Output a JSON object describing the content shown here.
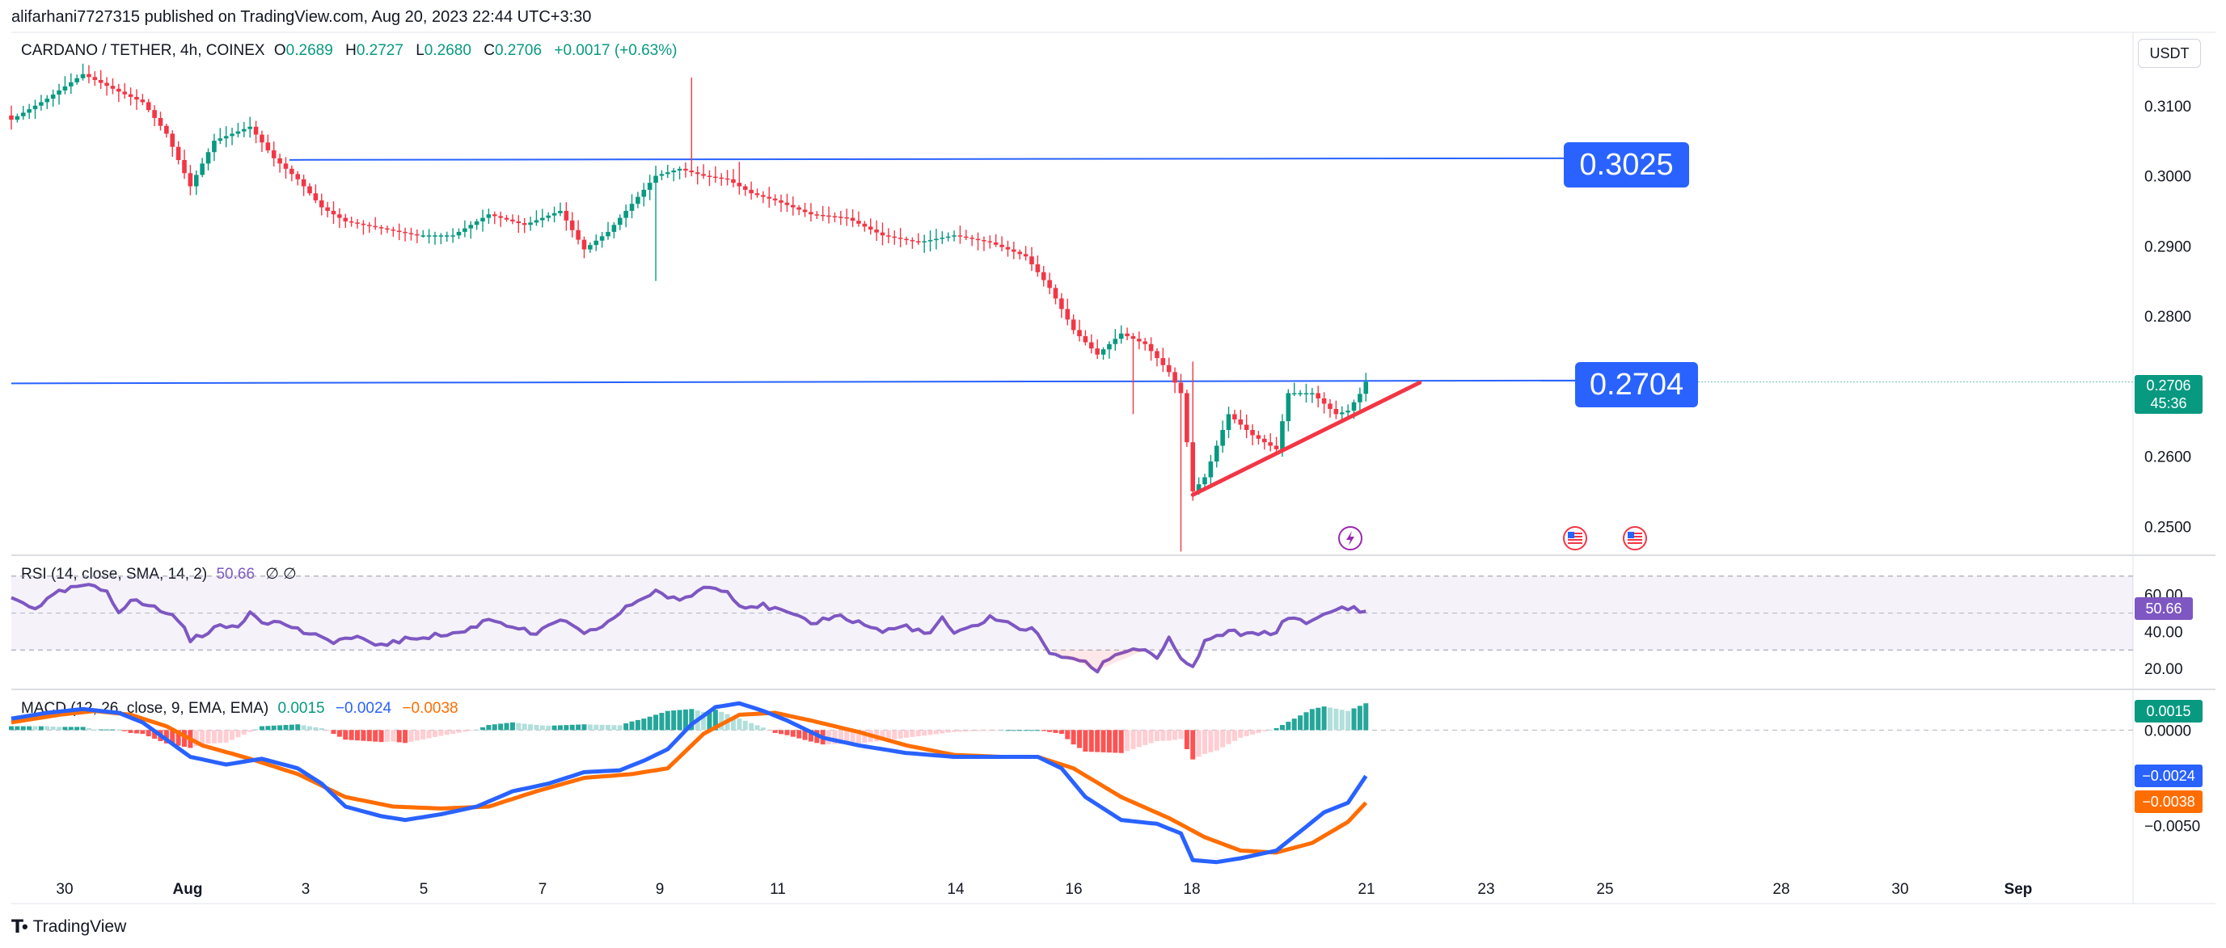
{
  "attribution": "alifarhani7727315 published on TradingView.com, Aug 20, 2023 22:44 UTC+3:30",
  "footer_brand": "TradingView",
  "currency": "USDT",
  "colors": {
    "up": "#089981",
    "down": "#f23645",
    "level": "#2962ff",
    "rsi": "#7e57c2",
    "macd": "#2962ff",
    "signal": "#ff6d00",
    "trendline": "#f23645"
  },
  "icons": [
    "lightning-event-icon",
    "us-flag-event-icon",
    "us-flag-event-icon"
  ],
  "chart_data": [
    {
      "type": "candlestick",
      "title": "CARDANO / TETHER, 4h, COINEX",
      "ohlc": {
        "o_label": "O",
        "o": "0.2689",
        "h_label": "H",
        "h": "0.2727",
        "l_label": "L",
        "l": "0.2680",
        "c_label": "C",
        "c": "0.2706",
        "change": "+0.0017 (+0.63%)"
      },
      "x_ticks": [
        "30",
        "Aug",
        "3",
        "5",
        "7",
        "9",
        "11",
        "14",
        "16",
        "18",
        "21",
        "23",
        "25",
        "28",
        "30",
        "Sep"
      ],
      "y_ticks": [
        "0.3100",
        "0.3000",
        "0.2900",
        "0.2800",
        "0.2600",
        "0.2500"
      ],
      "ylim": [
        0.246,
        0.32
      ],
      "key_levels": [
        "0.3025",
        "0.2704"
      ],
      "last_price": "0.2706",
      "countdown": "45:36",
      "support_trendline": {
        "start_bar": 198,
        "start_price": 0.2545,
        "end_bar": 236,
        "end_price": 0.2705
      },
      "anchors": [
        [
          0,
          0.308
        ],
        [
          6,
          0.311
        ],
        [
          12,
          0.3145
        ],
        [
          18,
          0.312
        ],
        [
          22,
          0.3105
        ],
        [
          26,
          0.306
        ],
        [
          30,
          0.2985
        ],
        [
          34,
          0.305
        ],
        [
          40,
          0.307
        ],
        [
          44,
          0.3025
        ],
        [
          48,
          0.2995
        ],
        [
          52,
          0.2955
        ],
        [
          56,
          0.2935
        ],
        [
          62,
          0.2925
        ],
        [
          68,
          0.2915
        ],
        [
          74,
          0.2915
        ],
        [
          80,
          0.2945
        ],
        [
          86,
          0.293
        ],
        [
          92,
          0.295
        ],
        [
          96,
          0.2895
        ],
        [
          100,
          0.292
        ],
        [
          104,
          0.296
        ],
        [
          108,
          0.3
        ],
        [
          112,
          0.301
        ],
        [
          116,
          0.3
        ],
        [
          120,
          0.2995
        ],
        [
          124,
          0.2975
        ],
        [
          128,
          0.2965
        ],
        [
          134,
          0.2945
        ],
        [
          140,
          0.294
        ],
        [
          146,
          0.2915
        ],
        [
          152,
          0.2905
        ],
        [
          158,
          0.2915
        ],
        [
          164,
          0.2905
        ],
        [
          170,
          0.2885
        ],
        [
          174,
          0.284
        ],
        [
          178,
          0.278
        ],
        [
          182,
          0.2745
        ],
        [
          186,
          0.2775
        ],
        [
          190,
          0.276
        ],
        [
          194,
          0.272
        ],
        [
          196,
          0.269
        ],
        [
          198,
          0.255
        ],
        [
          200,
          0.257
        ],
        [
          204,
          0.266
        ],
        [
          208,
          0.263
        ],
        [
          212,
          0.261
        ],
        [
          214,
          0.269
        ],
        [
          218,
          0.269
        ],
        [
          222,
          0.266
        ],
        [
          224,
          0.2665
        ],
        [
          226,
          0.2689
        ],
        [
          227,
          0.2706
        ]
      ]
    },
    {
      "type": "line",
      "title": "RSI (14, close, SMA, 14, 2)",
      "value": "50.66",
      "extra": "∅ ∅",
      "y_ticks": [
        "60.00",
        "40.00",
        "20.00"
      ],
      "ylim": [
        10,
        80
      ],
      "band": [
        30,
        70
      ],
      "anchors": [
        [
          0,
          58
        ],
        [
          4,
          53
        ],
        [
          8,
          61
        ],
        [
          12,
          65
        ],
        [
          16,
          62
        ],
        [
          18,
          51
        ],
        [
          20,
          57
        ],
        [
          24,
          53
        ],
        [
          28,
          47
        ],
        [
          30,
          35
        ],
        [
          34,
          42
        ],
        [
          38,
          43
        ],
        [
          40,
          51
        ],
        [
          42,
          46
        ],
        [
          46,
          44
        ],
        [
          48,
          41
        ],
        [
          52,
          36
        ],
        [
          54,
          35
        ],
        [
          58,
          37
        ],
        [
          60,
          33
        ],
        [
          64,
          34
        ],
        [
          68,
          37
        ],
        [
          72,
          38
        ],
        [
          76,
          40
        ],
        [
          80,
          47
        ],
        [
          84,
          43
        ],
        [
          88,
          38
        ],
        [
          92,
          47
        ],
        [
          96,
          38
        ],
        [
          100,
          45
        ],
        [
          104,
          55
        ],
        [
          108,
          62
        ],
        [
          112,
          56
        ],
        [
          116,
          64
        ],
        [
          120,
          63
        ],
        [
          122,
          54
        ],
        [
          126,
          54
        ],
        [
          130,
          50
        ],
        [
          134,
          44
        ],
        [
          138,
          49
        ],
        [
          142,
          45
        ],
        [
          146,
          40
        ],
        [
          150,
          43
        ],
        [
          154,
          38
        ],
        [
          156,
          48
        ],
        [
          158,
          38
        ],
        [
          162,
          44
        ],
        [
          164,
          48
        ],
        [
          168,
          43
        ],
        [
          172,
          40
        ],
        [
          174,
          27
        ],
        [
          178,
          26
        ],
        [
          182,
          19
        ],
        [
          184,
          26
        ],
        [
          188,
          31
        ],
        [
          190,
          30
        ],
        [
          192,
          26
        ],
        [
          194,
          36
        ],
        [
          196,
          24
        ],
        [
          198,
          21
        ],
        [
          200,
          34
        ],
        [
          204,
          40
        ],
        [
          208,
          38
        ],
        [
          212,
          40
        ],
        [
          214,
          48
        ],
        [
          218,
          45
        ],
        [
          222,
          52
        ],
        [
          225,
          53
        ],
        [
          227,
          50.66
        ]
      ]
    },
    {
      "type": "line",
      "title": "MACD (12, 26, close, 9, EMA, EMA)",
      "values": {
        "histogram": "0.0015",
        "macd": "−0.0024",
        "signal": "−0.0038"
      },
      "y_ticks": [
        "0.0000",
        "−0.0050"
      ],
      "ylim": [
        -0.0078,
        0.002
      ],
      "series": [
        {
          "name": "MACD",
          "anchors": [
            [
              0,
              0.0006
            ],
            [
              6,
              0.0009
            ],
            [
              12,
              0.0011
            ],
            [
              18,
              0.0009
            ],
            [
              22,
              0.0004
            ],
            [
              26,
              -0.0005
            ],
            [
              30,
              -0.0014
            ],
            [
              36,
              -0.0018
            ],
            [
              42,
              -0.0015
            ],
            [
              48,
              -0.002
            ],
            [
              52,
              -0.0028
            ],
            [
              56,
              -0.004
            ],
            [
              62,
              -0.0045
            ],
            [
              66,
              -0.0047
            ],
            [
              72,
              -0.0044
            ],
            [
              78,
              -0.004
            ],
            [
              84,
              -0.0032
            ],
            [
              90,
              -0.0028
            ],
            [
              96,
              -0.0022
            ],
            [
              102,
              -0.0021
            ],
            [
              106,
              -0.0016
            ],
            [
              110,
              -0.001
            ],
            [
              114,
              0.0003
            ],
            [
              118,
              0.0012
            ],
            [
              122,
              0.0014
            ],
            [
              126,
              0.001
            ],
            [
              130,
              0.0005
            ],
            [
              136,
              -0.0004
            ],
            [
              142,
              -0.0008
            ],
            [
              150,
              -0.0012
            ],
            [
              158,
              -0.0014
            ],
            [
              166,
              -0.0014
            ],
            [
              172,
              -0.0014
            ],
            [
              176,
              -0.002
            ],
            [
              180,
              -0.0035
            ],
            [
              186,
              -0.0047
            ],
            [
              192,
              -0.0049
            ],
            [
              196,
              -0.0054
            ],
            [
              198,
              -0.0068
            ],
            [
              202,
              -0.0069
            ],
            [
              206,
              -0.0067
            ],
            [
              212,
              -0.0063
            ],
            [
              216,
              -0.0053
            ],
            [
              220,
              -0.0043
            ],
            [
              224,
              -0.0038
            ],
            [
              227,
              -0.0024
            ]
          ]
        },
        {
          "name": "Signal",
          "anchors": [
            [
              0,
              0.0004
            ],
            [
              8,
              0.0008
            ],
            [
              14,
              0.001
            ],
            [
              20,
              0.0008
            ],
            [
              26,
              0.0002
            ],
            [
              32,
              -0.0008
            ],
            [
              40,
              -0.0015
            ],
            [
              48,
              -0.0023
            ],
            [
              56,
              -0.0035
            ],
            [
              64,
              -0.004
            ],
            [
              72,
              -0.0041
            ],
            [
              80,
              -0.004
            ],
            [
              88,
              -0.0032
            ],
            [
              96,
              -0.0025
            ],
            [
              104,
              -0.0023
            ],
            [
              110,
              -0.002
            ],
            [
              116,
              -0.0002
            ],
            [
              122,
              0.0008
            ],
            [
              128,
              0.0009
            ],
            [
              134,
              0.0005
            ],
            [
              142,
              -0.0001
            ],
            [
              150,
              -0.0008
            ],
            [
              158,
              -0.0013
            ],
            [
              166,
              -0.0014
            ],
            [
              172,
              -0.0014
            ],
            [
              178,
              -0.002
            ],
            [
              186,
              -0.0035
            ],
            [
              194,
              -0.0046
            ],
            [
              200,
              -0.0056
            ],
            [
              206,
              -0.0063
            ],
            [
              212,
              -0.0064
            ],
            [
              218,
              -0.0059
            ],
            [
              224,
              -0.0048
            ],
            [
              227,
              -0.0038
            ]
          ]
        }
      ]
    }
  ]
}
